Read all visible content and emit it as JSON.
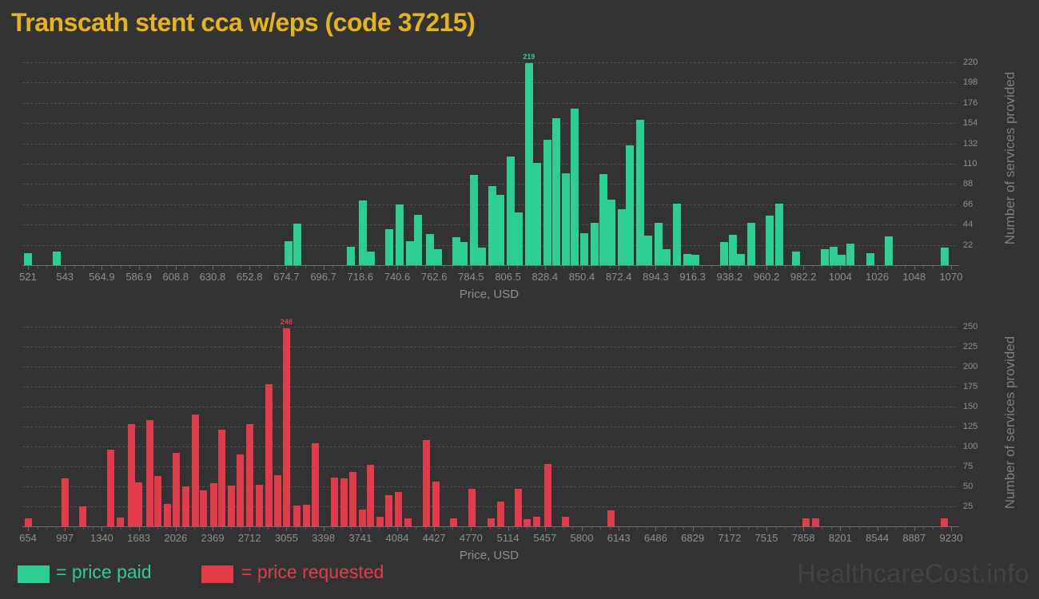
{
  "title": "Transcath stent cca w/eps (code 37215)",
  "watermark": "HealthcareCost.info",
  "legend": {
    "paid_label": "= price paid",
    "requested_label": "= price requested"
  },
  "colors": {
    "background": "#333333",
    "price_paid": "#2CCE92",
    "price_requested": "#E23C4B",
    "title": "#E5B31D",
    "axis_text": "#8E8E8E",
    "grid": "#4F4F4F",
    "watermark": "#434343"
  },
  "chart_data": [
    {
      "type": "bar",
      "name": "price_paid_histogram",
      "series_label": "price paid",
      "xlabel": "Price, USD",
      "ylabel": "Number of services provided",
      "grid": true,
      "legend_position": "bottom",
      "xlim": [
        521,
        1070
      ],
      "ylim": [
        0,
        231
      ],
      "x_tick_labels": [
        "521",
        "543",
        "564.9",
        "586.9",
        "608.8",
        "630.8",
        "652.8",
        "674.7",
        "696.7",
        "718.6",
        "740.6",
        "762.6",
        "784.5",
        "806.5",
        "828.4",
        "850.4",
        "872.4",
        "894.3",
        "916.3",
        "938.2",
        "960.2",
        "982.2",
        "1004",
        "1026",
        "1048",
        "1070"
      ],
      "y_ticks": [
        22,
        44,
        66,
        88,
        110,
        132,
        154,
        176,
        198,
        220
      ],
      "annotation": {
        "text": "219",
        "price": 819
      },
      "bars": [
        [
          521,
          13
        ],
        [
          538,
          15
        ],
        [
          676,
          26
        ],
        [
          681,
          45
        ],
        [
          713,
          20
        ],
        [
          720,
          70
        ],
        [
          725,
          15
        ],
        [
          736,
          39
        ],
        [
          742,
          66
        ],
        [
          748,
          26
        ],
        [
          753,
          55
        ],
        [
          760,
          34
        ],
        [
          765,
          17
        ],
        [
          776,
          30
        ],
        [
          780,
          25
        ],
        [
          786,
          98
        ],
        [
          791,
          19
        ],
        [
          797,
          86
        ],
        [
          802,
          76
        ],
        [
          808,
          118
        ],
        [
          813,
          57
        ],
        [
          819,
          219
        ],
        [
          824,
          111
        ],
        [
          830,
          136
        ],
        [
          835,
          159
        ],
        [
          841,
          100
        ],
        [
          846,
          170
        ],
        [
          852,
          35
        ],
        [
          858,
          46
        ],
        [
          863,
          99
        ],
        [
          868,
          71
        ],
        [
          874,
          61
        ],
        [
          879,
          130
        ],
        [
          885,
          158
        ],
        [
          890,
          32
        ],
        [
          896,
          46
        ],
        [
          901,
          17
        ],
        [
          907,
          67
        ],
        [
          913,
          12
        ],
        [
          918,
          11
        ],
        [
          935,
          25
        ],
        [
          940,
          33
        ],
        [
          945,
          12
        ],
        [
          951,
          46
        ],
        [
          962,
          54
        ],
        [
          968,
          67
        ],
        [
          978,
          15
        ],
        [
          995,
          17
        ],
        [
          1000,
          20
        ],
        [
          1005,
          11
        ],
        [
          1010,
          23
        ],
        [
          1022,
          13
        ],
        [
          1033,
          31
        ],
        [
          1066,
          19
        ]
      ]
    },
    {
      "type": "bar",
      "name": "price_requested_histogram",
      "series_label": "price requested",
      "xlabel": "Price, USD",
      "ylabel": "Number of services provided",
      "grid": true,
      "legend_position": "bottom",
      "xlim": [
        654,
        9230
      ],
      "ylim": [
        0,
        260
      ],
      "x_tick_labels": [
        "654",
        "997",
        "1340",
        "1683",
        "2026",
        "2369",
        "2712",
        "3055",
        "3398",
        "3741",
        "4084",
        "4427",
        "4770",
        "5114",
        "5457",
        "5800",
        "6143",
        "6486",
        "6829",
        "7172",
        "7515",
        "7858",
        "8201",
        "8544",
        "8887",
        "9230"
      ],
      "y_ticks": [
        25,
        50,
        75,
        100,
        125,
        150,
        175,
        200,
        225,
        250
      ],
      "annotation": {
        "text": "248",
        "price": 3055
      },
      "bars": [
        [
          654,
          10
        ],
        [
          996,
          60
        ],
        [
          1166,
          25
        ],
        [
          1426,
          96
        ],
        [
          1508,
          11
        ],
        [
          1612,
          128
        ],
        [
          1686,
          55
        ],
        [
          1783,
          133
        ],
        [
          1864,
          63
        ],
        [
          1946,
          28
        ],
        [
          2035,
          92
        ],
        [
          2117,
          50
        ],
        [
          2206,
          140
        ],
        [
          2287,
          45
        ],
        [
          2377,
          54
        ],
        [
          2458,
          121
        ],
        [
          2547,
          51
        ],
        [
          2629,
          90
        ],
        [
          2718,
          128
        ],
        [
          2800,
          52
        ],
        [
          2889,
          178
        ],
        [
          2978,
          64
        ],
        [
          3055,
          248
        ],
        [
          3156,
          26
        ],
        [
          3238,
          27
        ],
        [
          3327,
          104
        ],
        [
          3498,
          61
        ],
        [
          3587,
          60
        ],
        [
          3669,
          68
        ],
        [
          3758,
          21
        ],
        [
          3839,
          77
        ],
        [
          3928,
          12
        ],
        [
          4010,
          39
        ],
        [
          4099,
          43
        ],
        [
          4188,
          10
        ],
        [
          4352,
          108
        ],
        [
          4441,
          56
        ],
        [
          4611,
          10
        ],
        [
          4782,
          47
        ],
        [
          4960,
          10
        ],
        [
          5049,
          31
        ],
        [
          5213,
          47
        ],
        [
          5294,
          9
        ],
        [
          5383,
          12
        ],
        [
          5487,
          78
        ],
        [
          5651,
          12
        ],
        [
          6074,
          20
        ],
        [
          7886,
          10
        ],
        [
          7975,
          10
        ],
        [
          9170,
          10
        ]
      ]
    }
  ]
}
